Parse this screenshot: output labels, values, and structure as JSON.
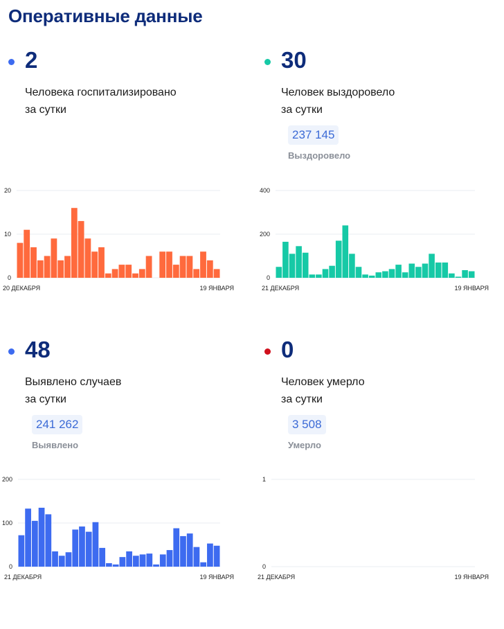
{
  "page": {
    "title": "Оперативные данные"
  },
  "cards": [
    {
      "number": "2",
      "line1": "Человека госпитализировано",
      "line2": "за сутки",
      "dot_color": "#3d6bf0"
    },
    {
      "number": "30",
      "line1": "Человек выздоровело",
      "line2": "за сутки",
      "total": "237 145",
      "total_label": "Выздоровело",
      "dot_color": "#16c9a6"
    },
    {
      "number": "48",
      "line1": "Выявлено случаев",
      "line2": "за сутки",
      "total": "241 262",
      "total_label": "Выявлено",
      "dot_color": "#3d6bf0"
    },
    {
      "number": "0",
      "line1": "Человек умерло",
      "line2": "за сутки",
      "total": "3 508",
      "total_label": "Умерло",
      "dot_color": "#d0101d"
    }
  ],
  "chart_data": [
    {
      "type": "bar",
      "title": "Человека госпитализировано за сутки",
      "color": "#ff6a3d",
      "ylim": [
        0,
        20
      ],
      "y_ticks": [
        0,
        10,
        20
      ],
      "x_start_label": "20 ДЕКАБРЯ",
      "x_end_label": "19 ЯНВАРЯ",
      "values": [
        8,
        11,
        7,
        4,
        5,
        9,
        4,
        5,
        16,
        13,
        9,
        6,
        7,
        1,
        2,
        3,
        3,
        1,
        2,
        5,
        null,
        6,
        6,
        3,
        5,
        5,
        2,
        6,
        4,
        2
      ]
    },
    {
      "type": "bar",
      "title": "Человек выздоровело за сутки",
      "color": "#16c9a6",
      "ylim": [
        0,
        400
      ],
      "y_ticks": [
        0,
        200,
        400
      ],
      "x_start_label": "21 ДЕКАБРЯ",
      "x_end_label": "19 ЯНВАРЯ",
      "values": [
        50,
        165,
        110,
        145,
        115,
        15,
        15,
        40,
        55,
        170,
        240,
        110,
        50,
        15,
        10,
        25,
        30,
        40,
        60,
        25,
        65,
        50,
        65,
        110,
        70,
        70,
        20,
        5,
        35,
        30
      ]
    },
    {
      "type": "bar",
      "title": "Выявлено случаев за сутки",
      "color": "#3d6bf0",
      "ylim": [
        0,
        200
      ],
      "y_ticks": [
        0,
        100,
        200
      ],
      "x_start_label": "21 ДЕКАБРЯ",
      "x_end_label": "19 ЯНВАРЯ",
      "values": [
        72,
        133,
        105,
        135,
        120,
        35,
        25,
        33,
        85,
        92,
        80,
        102,
        43,
        8,
        5,
        22,
        35,
        25,
        28,
        30,
        5,
        28,
        38,
        88,
        70,
        76,
        45,
        10,
        53,
        48
      ]
    },
    {
      "type": "bar",
      "title": "Человек умерло за сутки",
      "color": "#d0101d",
      "ylim": [
        0,
        1
      ],
      "y_ticks": [
        0,
        1
      ],
      "x_start_label": "21 ДЕКАБРЯ",
      "x_end_label": "19 ЯНВАРЯ",
      "values": []
    }
  ]
}
